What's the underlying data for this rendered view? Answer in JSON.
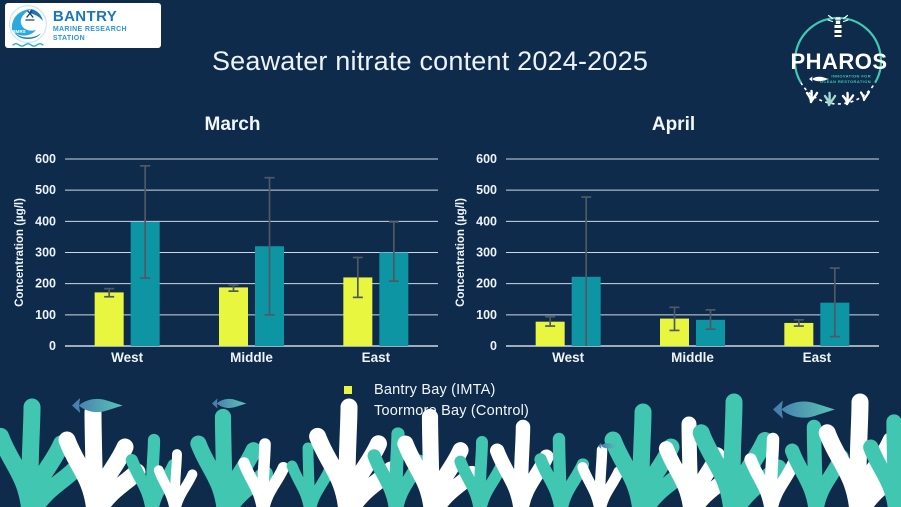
{
  "slide": {
    "title": "Seawater nitrate content 2024-2025"
  },
  "logos": {
    "bmrs": {
      "name": "BANTRY",
      "subtitle": "MARINE RESEARCH STATION",
      "badge": "BMRS"
    },
    "pharos": {
      "wordmark": "PHAROS",
      "tagline_line1": "INNOVATION FOR",
      "tagline_line2": "OCEAN RESTORATION"
    }
  },
  "legend": [
    {
      "label": "Bantry Bay (IMTA)",
      "color": "#e9f63f"
    },
    {
      "label": "Toormore Bay (Control)",
      "color": "#0e95a4"
    }
  ],
  "chart_data": [
    {
      "type": "bar",
      "title": "March",
      "categories": [
        "West",
        "Middle",
        "East"
      ],
      "series": [
        {
          "name": "Bantry Bay (IMTA)",
          "color": "#e9f63f",
          "values": [
            172,
            188,
            220
          ],
          "error_low": [
            158,
            176,
            156
          ],
          "error_high": [
            184,
            196,
            284
          ]
        },
        {
          "name": "Toormore Bay (Control)",
          "color": "#0e95a4",
          "values": [
            398,
            320,
            300
          ],
          "error_low": [
            218,
            100,
            208
          ],
          "error_high": [
            578,
            540,
            398
          ]
        }
      ],
      "xlabel": "",
      "ylabel": "Concentration (µg/l)",
      "ylim": [
        0,
        600
      ],
      "yticks": [
        0,
        100,
        200,
        300,
        400,
        500,
        600
      ],
      "grid": true,
      "legend_position": "bottom"
    },
    {
      "type": "bar",
      "title": "April",
      "categories": [
        "West",
        "Middle",
        "East"
      ],
      "series": [
        {
          "name": "Bantry Bay (IMTA)",
          "color": "#e9f63f",
          "values": [
            78,
            88,
            74
          ],
          "error_low": [
            64,
            50,
            64
          ],
          "error_high": [
            94,
            124,
            84
          ]
        },
        {
          "name": "Toormore Bay (Control)",
          "color": "#0e95a4",
          "values": [
            222,
            84,
            139
          ],
          "error_low": [
            0,
            54,
            30
          ],
          "error_high": [
            478,
            116,
            250
          ]
        }
      ],
      "xlabel": "",
      "ylabel": "Concentration (µg/l)",
      "ylim": [
        0,
        600
      ],
      "yticks": [
        0,
        100,
        200,
        300,
        400,
        500,
        600
      ],
      "grid": true,
      "legend_position": "bottom"
    }
  ],
  "colors": {
    "background": "#0e2b4c",
    "bar_yellow": "#e9f63f",
    "bar_teal": "#0e95a4",
    "gridline": "#cfd8e2",
    "error_bar": "#4e5964",
    "text": "#eef3f8",
    "coral_teal": "#41c7b1",
    "coral_white": "#ffffff",
    "fish_blue": "#4679ae",
    "fish_teal": "#59c4b5",
    "bmrs_blue": "#1b76bc",
    "bmrs_light_blue": "#2aa9e0",
    "pharos_teal": "#3fc8b2"
  }
}
